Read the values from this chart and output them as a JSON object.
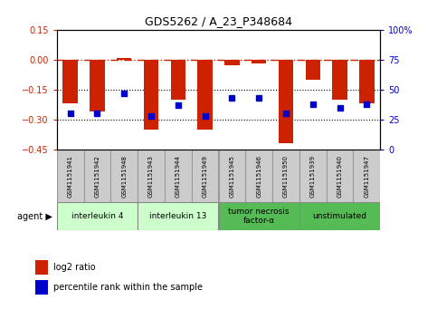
{
  "title": "GDS5262 / A_23_P348684",
  "samples": [
    "GSM1151941",
    "GSM1151942",
    "GSM1151948",
    "GSM1151943",
    "GSM1151944",
    "GSM1151949",
    "GSM1151945",
    "GSM1151946",
    "GSM1151950",
    "GSM1151939",
    "GSM1151940",
    "GSM1151947"
  ],
  "log2_ratio": [
    -0.22,
    -0.26,
    0.01,
    -0.35,
    -0.2,
    -0.35,
    -0.03,
    -0.02,
    -0.42,
    -0.1,
    -0.2,
    -0.22
  ],
  "percentile": [
    30,
    30,
    47,
    28,
    37,
    28,
    43,
    43,
    30,
    38,
    35,
    38
  ],
  "ylim_left": [
    -0.45,
    0.15
  ],
  "ylim_right": [
    0,
    100
  ],
  "yticks_left": [
    -0.45,
    -0.3,
    -0.15,
    0.0,
    0.15
  ],
  "yticks_right": [
    0,
    25,
    50,
    75,
    100
  ],
  "groups": [
    {
      "label": "interleukin 4",
      "start": 0,
      "end": 3,
      "color": "#ccffcc"
    },
    {
      "label": "interleukin 13",
      "start": 3,
      "end": 6,
      "color": "#ccffcc"
    },
    {
      "label": "tumor necrosis\nfactor-α",
      "start": 6,
      "end": 9,
      "color": "#55bb55"
    },
    {
      "label": "unstimulated",
      "start": 9,
      "end": 12,
      "color": "#55bb55"
    }
  ],
  "bar_color": "#cc2200",
  "dot_color": "#0000cc",
  "hline_color": "#cc2200",
  "grid_color": "#000000",
  "agent_label": "agent",
  "legend_bar": "log2 ratio",
  "legend_dot": "percentile rank within the sample",
  "sample_box_color": "#cccccc",
  "sample_box_edge": "#999999"
}
